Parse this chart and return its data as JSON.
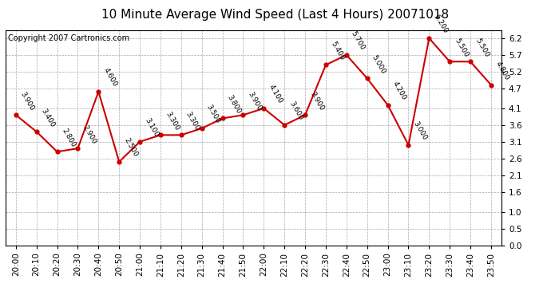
{
  "title": "10 Minute Average Wind Speed (Last 4 Hours) 20071018",
  "copyright": "Copyright 2007 Cartronics.com",
  "times": [
    "20:00",
    "20:10",
    "20:20",
    "20:30",
    "20:40",
    "20:50",
    "21:00",
    "21:10",
    "21:20",
    "21:30",
    "21:40",
    "21:50",
    "22:00",
    "22:10",
    "22:20",
    "22:30",
    "22:40",
    "22:50",
    "23:00",
    "23:10",
    "23:20",
    "23:30",
    "23:40",
    "23:50"
  ],
  "values": [
    3.9,
    3.4,
    2.8,
    2.9,
    4.6,
    2.5,
    3.1,
    3.3,
    3.3,
    3.5,
    3.8,
    3.9,
    4.1,
    3.6,
    3.9,
    5.4,
    5.7,
    5.0,
    4.2,
    3.0,
    6.2,
    5.5,
    5.5,
    4.8
  ],
  "line_color": "#cc0000",
  "marker_color": "#cc0000",
  "bg_color": "#ffffff",
  "plot_bg_color": "#ffffff",
  "grid_color": "#aaaaaa",
  "title_fontsize": 11,
  "copyright_fontsize": 7,
  "label_fontsize": 6.5,
  "tick_fontsize": 7.5,
  "ylim": [
    0.0,
    6.45
  ],
  "yticks": [
    0.0,
    0.5,
    1.0,
    1.6,
    2.1,
    2.6,
    3.1,
    3.6,
    4.1,
    4.7,
    5.2,
    5.7,
    6.2
  ],
  "ytick_labels": [
    "0.0",
    "0.5",
    "1.0",
    "1.6",
    "2.1",
    "2.6",
    "3.1",
    "3.6",
    "4.1",
    "4.7",
    "5.2",
    "5.7",
    "6.2"
  ]
}
